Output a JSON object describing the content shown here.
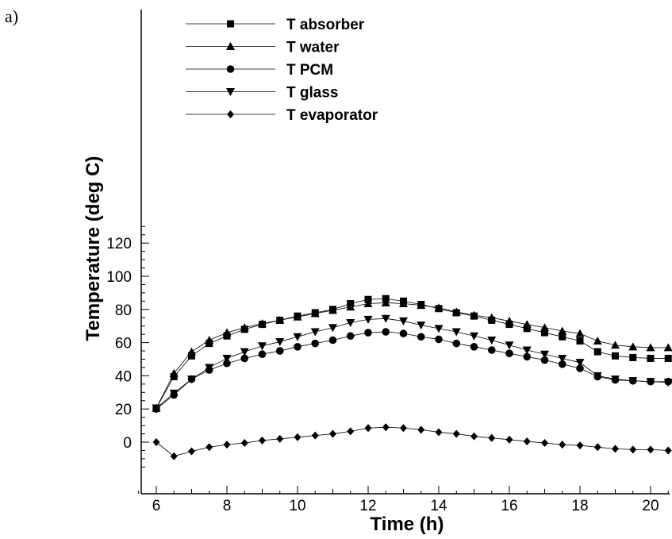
{
  "figure_label": "a)",
  "chart_data": {
    "type": "line",
    "title": "",
    "xlabel": "Time (h)",
    "ylabel": "Temperature (deg C)",
    "xlim": [
      5.5,
      20.5
    ],
    "ylim": [
      -15,
      130
    ],
    "xticks": [
      6,
      8,
      10,
      12,
      14,
      16,
      18,
      20
    ],
    "yticks": [
      0,
      20,
      40,
      60,
      80,
      100,
      120
    ],
    "grid": false,
    "legend_position": "top-center",
    "x": [
      6,
      6.5,
      7,
      7.5,
      8,
      8.5,
      9,
      9.5,
      10,
      10.5,
      11,
      11.5,
      12,
      12.5,
      13,
      13.5,
      14,
      14.5,
      15,
      15.5,
      16,
      16.5,
      17,
      17.5,
      18,
      18.5,
      19,
      19.5,
      20,
      20.5
    ],
    "series": [
      {
        "name": "T absorber",
        "marker": "square",
        "values": [
          20.5,
          39.5,
          52,
          59.5,
          64,
          68,
          71,
          73.5,
          76,
          78,
          80,
          83.5,
          86,
          86.5,
          85,
          83,
          80.5,
          78,
          76,
          73.5,
          71,
          68.5,
          66,
          63.5,
          61,
          54.5,
          52,
          51,
          50.5,
          50.5
        ]
      },
      {
        "name": "T water",
        "marker": "triangle-up",
        "values": [
          20.5,
          41.5,
          54.5,
          61.5,
          66,
          69,
          71.5,
          73.5,
          75.5,
          77.5,
          79.5,
          81.5,
          83.5,
          84,
          83.5,
          82.5,
          81,
          78.5,
          76.5,
          75,
          73,
          71,
          69,
          67,
          65.5,
          61,
          58.5,
          57.5,
          57,
          57
        ]
      },
      {
        "name": "T PCM",
        "marker": "circle",
        "values": [
          20,
          28.5,
          38,
          43.5,
          47.5,
          50.5,
          53,
          55,
          57.5,
          59.5,
          61.5,
          64,
          66,
          66.5,
          65.5,
          63.5,
          62,
          59.5,
          57.5,
          55.5,
          53.5,
          51.5,
          49.5,
          47,
          44.5,
          39.5,
          37.5,
          37,
          36.5,
          36.5
        ]
      },
      {
        "name": "T glass",
        "marker": "triangle-down",
        "values": [
          20.5,
          29.5,
          38,
          45,
          50.5,
          54.5,
          58,
          60.5,
          63.5,
          66.5,
          69,
          72,
          74,
          74.5,
          73,
          70.5,
          68.5,
          66.5,
          64,
          61.5,
          58.5,
          55.5,
          53,
          50.5,
          48,
          40,
          38,
          37,
          36.5,
          36
        ]
      },
      {
        "name": "T evaporator",
        "marker": "diamond",
        "values": [
          0,
          -8.5,
          -5.5,
          -3,
          -1.5,
          -0.5,
          1,
          2,
          3,
          4,
          5,
          6.5,
          8.5,
          9,
          8.5,
          7.5,
          6,
          5,
          3.5,
          2.5,
          1.5,
          0.5,
          -0.5,
          -1.5,
          -2,
          -3,
          -4,
          -4.5,
          -4.5,
          -5
        ]
      }
    ]
  }
}
